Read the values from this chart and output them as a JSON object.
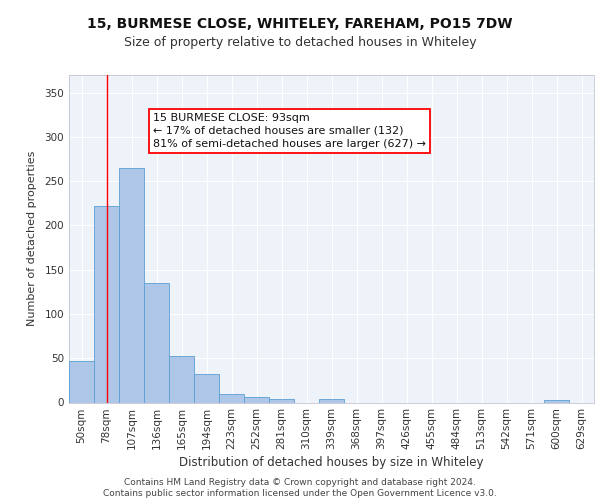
{
  "title1": "15, BURMESE CLOSE, WHITELEY, FAREHAM, PO15 7DW",
  "title2": "Size of property relative to detached houses in Whiteley",
  "xlabel": "Distribution of detached houses by size in Whiteley",
  "ylabel": "Number of detached properties",
  "footnote1": "Contains HM Land Registry data © Crown copyright and database right 2024.",
  "footnote2": "Contains public sector information licensed under the Open Government Licence v3.0.",
  "categories": [
    "50sqm",
    "78sqm",
    "107sqm",
    "136sqm",
    "165sqm",
    "194sqm",
    "223sqm",
    "252sqm",
    "281sqm",
    "310sqm",
    "339sqm",
    "368sqm",
    "397sqm",
    "426sqm",
    "455sqm",
    "484sqm",
    "513sqm",
    "542sqm",
    "571sqm",
    "600sqm",
    "629sqm"
  ],
  "values": [
    47,
    222,
    265,
    135,
    53,
    32,
    10,
    6,
    4,
    0,
    4,
    0,
    0,
    0,
    0,
    0,
    0,
    0,
    0,
    3,
    0
  ],
  "bar_color": "#aec6e8",
  "bar_edge_color": "#5a9fd4",
  "red_line_bin": 1,
  "annotation_box_text": "15 BURMESE CLOSE: 93sqm\n← 17% of detached houses are smaller (132)\n81% of semi-detached houses are larger (627) →",
  "ylim": [
    0,
    370
  ],
  "yticks": [
    0,
    50,
    100,
    150,
    200,
    250,
    300,
    350
  ],
  "background_color": "#eef2f9",
  "grid_color": "#ffffff",
  "title1_fontsize": 10,
  "title2_fontsize": 9,
  "xlabel_fontsize": 8.5,
  "ylabel_fontsize": 8,
  "tick_fontsize": 7.5,
  "annot_fontsize": 8,
  "footnote_fontsize": 6.5
}
